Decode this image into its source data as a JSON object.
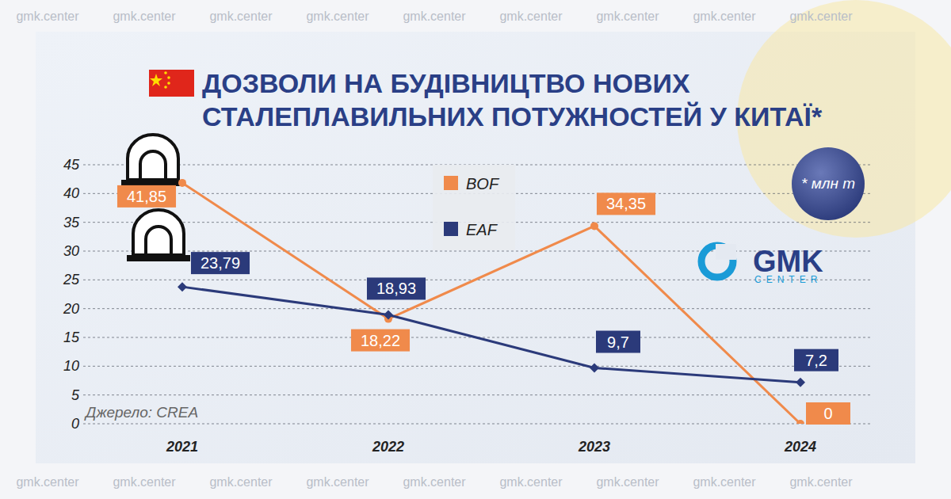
{
  "chart_data": {
    "type": "line",
    "title": "ДОЗВОЛИ НА БУДІВНИЦТВО НОВИХ СТАЛЕПЛАВИЛЬНИХ ПОТУЖНОСТЕЙ У КИТАЇ*",
    "note": "* млн т",
    "source": "Джерело: CREA",
    "watermark": "gmk.center",
    "logo": "GMK",
    "logo_subtitle": "CENTER",
    "categories": [
      "2021",
      "2022",
      "2023",
      "2024"
    ],
    "series": [
      {
        "name": "BOF",
        "color": "#f08a4b",
        "marker": "circle",
        "values": [
          41.85,
          18.22,
          34.35,
          0
        ],
        "value_labels": [
          "41,85",
          "18,22",
          "34,35",
          "0"
        ]
      },
      {
        "name": "EAF",
        "color": "#2b3a7a",
        "marker": "diamond",
        "values": [
          23.79,
          18.93,
          9.7,
          7.2
        ],
        "value_labels": [
          "23,79",
          "18,93",
          "9,7",
          "7,2"
        ]
      }
    ],
    "ylim": [
      0,
      45
    ],
    "yticks": [
      0,
      5,
      10,
      15,
      20,
      25,
      30,
      35,
      40,
      45
    ],
    "grid": true,
    "legend": "top",
    "data_labels": true
  }
}
